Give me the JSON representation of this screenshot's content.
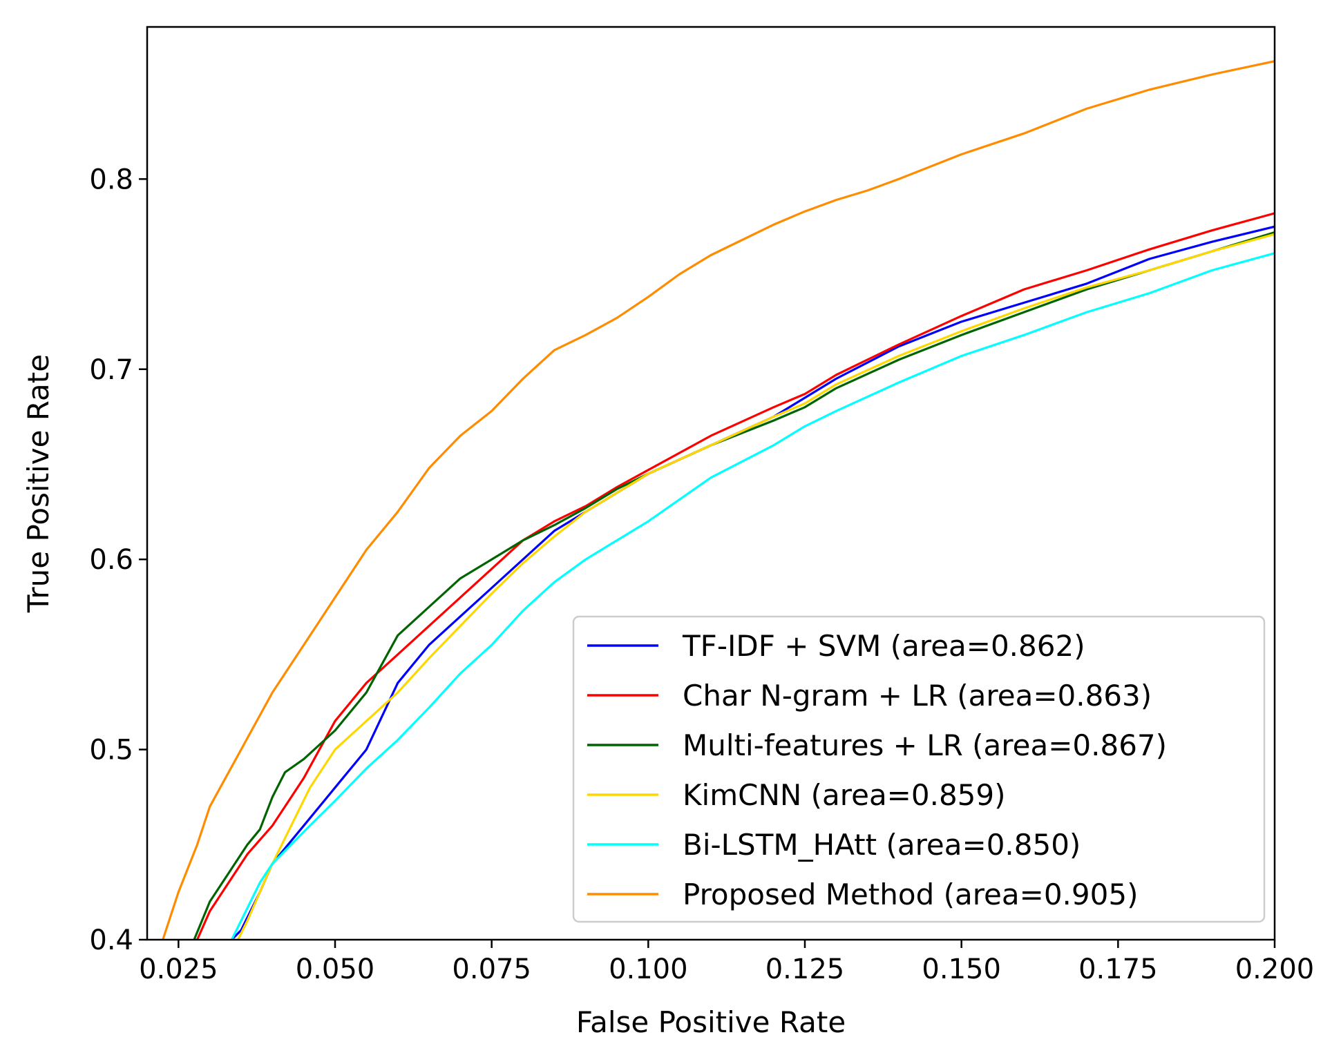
{
  "chart_data": {
    "type": "line",
    "title": "",
    "xlabel": "False Positive Rate",
    "ylabel": "True Positive Rate",
    "xlim": [
      0.02,
      0.2
    ],
    "ylim": [
      0.4,
      0.88
    ],
    "xticks": [
      0.025,
      0.05,
      0.075,
      0.1,
      0.125,
      0.15,
      0.175,
      0.2
    ],
    "xtick_labels": [
      "0.025",
      "0.050",
      "0.075",
      "0.100",
      "0.125",
      "0.150",
      "0.175",
      "0.200"
    ],
    "yticks": [
      0.4,
      0.5,
      0.6,
      0.7,
      0.8
    ],
    "ytick_labels": [
      "0.4",
      "0.5",
      "0.6",
      "0.7",
      "0.8"
    ],
    "grid": false,
    "legend_position": "lower-right",
    "series": [
      {
        "name": "TF-IDF + SVM (area=0.862)",
        "color": "#0000ff",
        "x": [
          0.0335,
          0.035,
          0.038,
          0.04,
          0.045,
          0.05,
          0.055,
          0.06,
          0.065,
          0.07,
          0.075,
          0.08,
          0.085,
          0.09,
          0.095,
          0.1,
          0.11,
          0.12,
          0.125,
          0.13,
          0.14,
          0.15,
          0.16,
          0.17,
          0.18,
          0.19,
          0.2
        ],
        "y": [
          0.4,
          0.405,
          0.425,
          0.44,
          0.46,
          0.48,
          0.5,
          0.535,
          0.555,
          0.57,
          0.585,
          0.6,
          0.615,
          0.625,
          0.635,
          0.645,
          0.66,
          0.675,
          0.685,
          0.695,
          0.712,
          0.725,
          0.735,
          0.745,
          0.758,
          0.767,
          0.775
        ]
      },
      {
        "name": "Char N-gram + LR (area=0.863)",
        "color": "#ff0000",
        "x": [
          0.028,
          0.03,
          0.033,
          0.036,
          0.04,
          0.045,
          0.05,
          0.055,
          0.06,
          0.065,
          0.07,
          0.075,
          0.08,
          0.085,
          0.09,
          0.095,
          0.1,
          0.11,
          0.12,
          0.125,
          0.13,
          0.14,
          0.15,
          0.16,
          0.17,
          0.18,
          0.19,
          0.2
        ],
        "y": [
          0.4,
          0.415,
          0.43,
          0.445,
          0.46,
          0.485,
          0.515,
          0.535,
          0.55,
          0.565,
          0.58,
          0.595,
          0.61,
          0.62,
          0.628,
          0.638,
          0.647,
          0.665,
          0.68,
          0.687,
          0.697,
          0.713,
          0.728,
          0.742,
          0.752,
          0.763,
          0.773,
          0.782
        ]
      },
      {
        "name": "Multi-features + LR (area=0.867)",
        "color": "#006400",
        "x": [
          0.0275,
          0.03,
          0.033,
          0.036,
          0.038,
          0.04,
          0.042,
          0.045,
          0.05,
          0.055,
          0.06,
          0.065,
          0.07,
          0.075,
          0.08,
          0.085,
          0.09,
          0.095,
          0.1,
          0.11,
          0.12,
          0.125,
          0.13,
          0.14,
          0.15,
          0.16,
          0.17,
          0.18,
          0.19,
          0.2
        ],
        "y": [
          0.4,
          0.42,
          0.435,
          0.45,
          0.458,
          0.475,
          0.488,
          0.495,
          0.51,
          0.53,
          0.56,
          0.575,
          0.59,
          0.6,
          0.61,
          0.618,
          0.627,
          0.637,
          0.645,
          0.66,
          0.673,
          0.68,
          0.69,
          0.705,
          0.718,
          0.73,
          0.742,
          0.752,
          0.762,
          0.772
        ]
      },
      {
        "name": "KimCNN (area=0.859)",
        "color": "#ffd700",
        "x": [
          0.0345,
          0.036,
          0.038,
          0.04,
          0.043,
          0.046,
          0.05,
          0.055,
          0.06,
          0.065,
          0.07,
          0.075,
          0.08,
          0.085,
          0.09,
          0.095,
          0.1,
          0.11,
          0.12,
          0.125,
          0.13,
          0.14,
          0.15,
          0.16,
          0.17,
          0.18,
          0.19,
          0.2
        ],
        "y": [
          0.4,
          0.41,
          0.425,
          0.44,
          0.46,
          0.48,
          0.5,
          0.515,
          0.53,
          0.548,
          0.565,
          0.582,
          0.598,
          0.612,
          0.625,
          0.635,
          0.645,
          0.66,
          0.675,
          0.682,
          0.692,
          0.707,
          0.72,
          0.732,
          0.743,
          0.752,
          0.762,
          0.771
        ]
      },
      {
        "name": "Bi-LSTM_HAtt (area=0.850)",
        "color": "#00ffff",
        "x": [
          0.0335,
          0.035,
          0.038,
          0.04,
          0.043,
          0.046,
          0.05,
          0.055,
          0.06,
          0.065,
          0.07,
          0.075,
          0.08,
          0.085,
          0.09,
          0.095,
          0.1,
          0.11,
          0.12,
          0.125,
          0.13,
          0.14,
          0.15,
          0.16,
          0.17,
          0.18,
          0.19,
          0.2
        ],
        "y": [
          0.4,
          0.41,
          0.43,
          0.44,
          0.45,
          0.46,
          0.473,
          0.49,
          0.505,
          0.522,
          0.54,
          0.555,
          0.573,
          0.588,
          0.6,
          0.61,
          0.62,
          0.643,
          0.66,
          0.67,
          0.678,
          0.693,
          0.707,
          0.718,
          0.73,
          0.74,
          0.752,
          0.761
        ]
      },
      {
        "name": "Proposed Method (area=0.905)",
        "color": "#ff8c00",
        "x": [
          0.0225,
          0.025,
          0.028,
          0.03,
          0.035,
          0.04,
          0.045,
          0.05,
          0.055,
          0.06,
          0.065,
          0.07,
          0.075,
          0.08,
          0.085,
          0.09,
          0.095,
          0.1,
          0.105,
          0.11,
          0.115,
          0.12,
          0.125,
          0.13,
          0.135,
          0.14,
          0.15,
          0.16,
          0.17,
          0.18,
          0.19,
          0.2
        ],
        "y": [
          0.4,
          0.425,
          0.45,
          0.47,
          0.5,
          0.53,
          0.555,
          0.58,
          0.605,
          0.625,
          0.648,
          0.665,
          0.678,
          0.695,
          0.71,
          0.718,
          0.727,
          0.738,
          0.75,
          0.76,
          0.768,
          0.776,
          0.783,
          0.789,
          0.794,
          0.8,
          0.813,
          0.824,
          0.837,
          0.847,
          0.855,
          0.862
        ]
      }
    ]
  }
}
